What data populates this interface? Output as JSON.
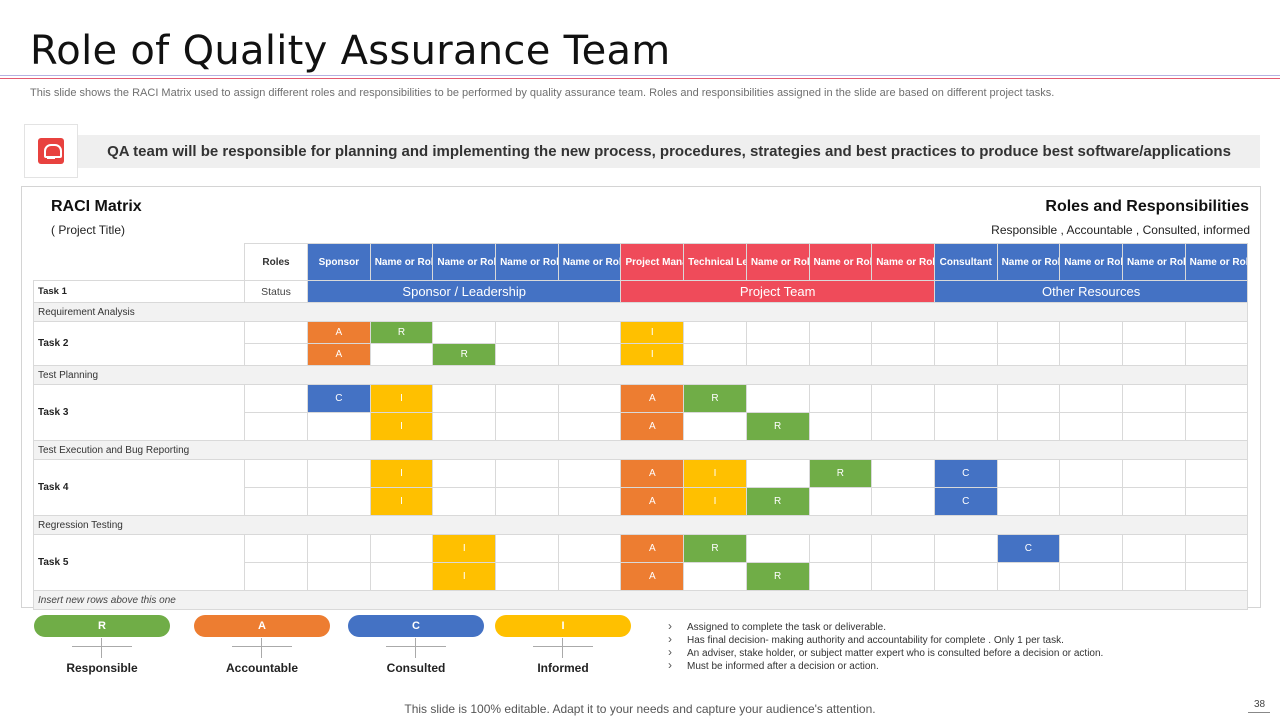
{
  "title": "Role of Quality Assurance Team",
  "subtitle": "This slide shows the RACI Matrix used to assign different roles and responsibilities to be performed by quality assurance team. Roles and responsibilities assigned in the slide are based on different project tasks.",
  "banner": {
    "icon": "qa-team-icon",
    "text": "QA team will be responsible for planning and implementing the new process,  procedures, strategies and best practices to produce best software/applications"
  },
  "matrix": {
    "title": "RACI Matrix",
    "project_title": "( Project Title)",
    "right_title": "Roles and Responsibilities",
    "right_subtitle": "Responsible , Accountable , Consulted, informed",
    "roles_label": "Roles",
    "status_label": "Status",
    "columns": [
      "Sponsor",
      "Name or Role",
      "Name or Role",
      "Name or Role",
      "Name or Role",
      "Project Manager",
      "Technical Lead",
      "Name or Role",
      "Name or Role",
      "Name or Role",
      "Consultant",
      "Name or Role",
      "Name or Role",
      "Name or Role",
      "Name or Role"
    ],
    "groups": [
      "Sponsor / Leadership",
      "Project Team",
      "Other Resources"
    ],
    "task1": "Task 1",
    "sections": [
      "Requirement Analysis",
      "Test Planning",
      "Test Execution and Bug Reporting",
      "Regression Testing"
    ],
    "tasks": [
      "Task 2",
      "Task 3",
      "Task 4",
      "Task 5"
    ],
    "footer_row": "Insert new rows above this one",
    "cells": {
      "t2r1": [
        "A",
        "R",
        "I"
      ],
      "t2r2": [
        "A",
        "R",
        "I"
      ],
      "t3r1": [
        "C",
        "I",
        "A",
        "R"
      ],
      "t3r2": [
        "I",
        "A",
        "R"
      ],
      "t4r1": [
        "I",
        "A",
        "I",
        "R",
        "C"
      ],
      "t4r2": [
        "I",
        "A",
        "I",
        "R",
        "C"
      ],
      "t5r1": [
        "I",
        "A",
        "R",
        "C"
      ],
      "t5r2": [
        "I",
        "A",
        "R"
      ]
    }
  },
  "legend": {
    "items": [
      {
        "letter": "R",
        "label": "Responsible"
      },
      {
        "letter": "A",
        "label": "Accountable"
      },
      {
        "letter": "C",
        "label": "Consulted"
      },
      {
        "letter": "I",
        "label": "Informed"
      }
    ],
    "definitions": [
      "Assigned to complete the task or deliverable.",
      "Has final decision- making authority and accountability for complete . Only 1 per task.",
      "An adviser, stake holder, or subject matter expert who is consulted before a decision or action.",
      "Must be informed after a decision or action."
    ]
  },
  "colors": {
    "responsible": "#70ad47",
    "accountable": "#ed7d31",
    "consulted": "#4472c4",
    "informed": "#ffc000",
    "project_team": "#ef4b5a"
  },
  "footer": "This slide is 100% editable. Adapt it to your needs and capture your audience's attention.",
  "page_number": "38"
}
